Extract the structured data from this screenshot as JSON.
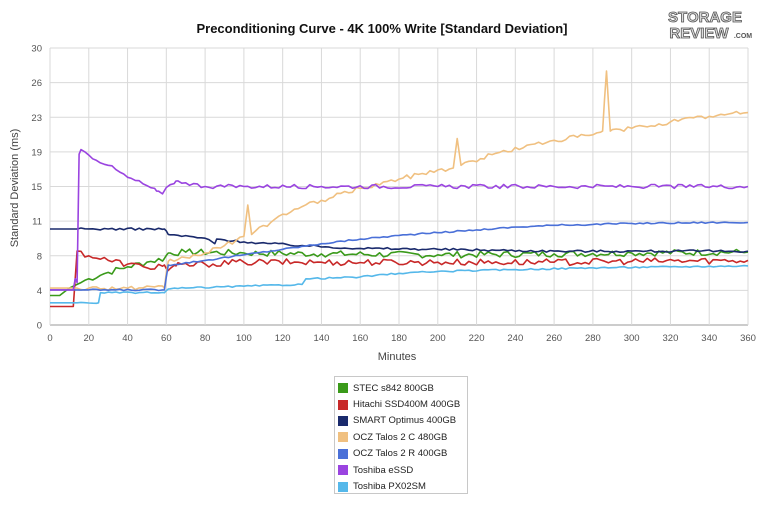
{
  "branding": {
    "logo_line1": "STORAGE",
    "logo_line2": "REVIEW",
    "logo_suffix": ".COM"
  },
  "chart_data": {
    "type": "line",
    "title": "Preconditioning Curve - 4K 100% Write [Standard Deviation]",
    "xlabel": "Minutes",
    "ylabel": "Standard Deviation (ms)",
    "xlim": [
      0,
      360
    ],
    "ylim": [
      0,
      30
    ],
    "xticks": [
      "0",
      "20",
      "40",
      "60",
      "80",
      "100",
      "120",
      "140",
      "160",
      "180",
      "200",
      "220",
      "240",
      "260",
      "280",
      "300",
      "320",
      "340",
      "360"
    ],
    "yticks": [
      "0",
      "4",
      "8",
      "11",
      "15",
      "19",
      "23",
      "26",
      "30"
    ],
    "grid": true,
    "legend_position": "bottom",
    "series": [
      {
        "name": "STEC s842 800GB",
        "color": "#3a9a1a",
        "points": [
          [
            0,
            3.2
          ],
          [
            5,
            3.2
          ],
          [
            10,
            4
          ],
          [
            20,
            5
          ],
          [
            30,
            5.7
          ],
          [
            40,
            6.3
          ],
          [
            50,
            6.8
          ],
          [
            59,
            7.2
          ],
          [
            61,
            7.8
          ],
          [
            70,
            7.9
          ],
          [
            100,
            7.8
          ],
          [
            140,
            7.7
          ],
          [
            200,
            7.6
          ],
          [
            260,
            7.7
          ],
          [
            300,
            7.8
          ],
          [
            360,
            7.9
          ]
        ],
        "jitter": 0.35
      },
      {
        "name": "Hitachi SSD400M 400GB",
        "color": "#c82828",
        "points": [
          [
            0,
            2
          ],
          [
            12,
            2
          ],
          [
            14,
            8
          ],
          [
            20,
            7.5
          ],
          [
            30,
            7
          ],
          [
            40,
            6.6
          ],
          [
            50,
            6.2
          ],
          [
            59,
            6.5
          ],
          [
            61,
            5.9
          ],
          [
            65,
            6.4
          ],
          [
            80,
            6.6
          ],
          [
            100,
            6.8
          ],
          [
            140,
            6.8
          ],
          [
            200,
            6.8
          ],
          [
            260,
            6.8
          ],
          [
            300,
            6.9
          ],
          [
            360,
            7
          ]
        ],
        "jitter": 0.35
      },
      {
        "name": "SMART Optimus 400GB",
        "color": "#1a2a6c",
        "points": [
          [
            0,
            10.4
          ],
          [
            30,
            10.4
          ],
          [
            59,
            10.4
          ],
          [
            61,
            9.8
          ],
          [
            80,
            9.4
          ],
          [
            85,
            8.8
          ],
          [
            86,
            9.3
          ],
          [
            100,
            9
          ],
          [
            130,
            8.6
          ],
          [
            160,
            8.3
          ],
          [
            200,
            8.2
          ],
          [
            260,
            8
          ],
          [
            300,
            8
          ],
          [
            360,
            8
          ]
        ],
        "jitter": 0.12
      },
      {
        "name": "OCZ Talos 2 C 480GB",
        "color": "#f0c080",
        "points": [
          [
            0,
            4
          ],
          [
            20,
            4
          ],
          [
            40,
            4
          ],
          [
            59,
            4
          ],
          [
            61,
            6.9
          ],
          [
            70,
            7.3
          ],
          [
            80,
            7.8
          ],
          [
            90,
            8.6
          ],
          [
            100,
            9.6
          ],
          [
            102,
            13
          ],
          [
            104,
            9.8
          ],
          [
            120,
            12
          ],
          [
            140,
            13.5
          ],
          [
            160,
            14.8
          ],
          [
            180,
            15.8
          ],
          [
            200,
            16.8
          ],
          [
            208,
            17
          ],
          [
            210,
            20.2
          ],
          [
            212,
            17.3
          ],
          [
            230,
            18.6
          ],
          [
            260,
            20
          ],
          [
            280,
            20.6
          ],
          [
            285,
            21
          ],
          [
            287,
            27.5
          ],
          [
            289,
            21
          ],
          [
            300,
            21.3
          ],
          [
            320,
            22
          ],
          [
            340,
            22.6
          ],
          [
            360,
            23
          ]
        ],
        "jitter": 0.25
      },
      {
        "name": "OCZ Talos 2 R 400GB",
        "color": "#4a70d8",
        "points": [
          [
            0,
            3.8
          ],
          [
            20,
            3.8
          ],
          [
            59,
            3.8
          ],
          [
            61,
            6.5
          ],
          [
            80,
            7
          ],
          [
            100,
            7.6
          ],
          [
            120,
            8.2
          ],
          [
            140,
            8.8
          ],
          [
            160,
            9.3
          ],
          [
            180,
            9.7
          ],
          [
            200,
            10
          ],
          [
            220,
            10.3
          ],
          [
            240,
            10.6
          ],
          [
            260,
            10.8
          ],
          [
            300,
            11
          ],
          [
            340,
            11.1
          ],
          [
            360,
            11.1
          ]
        ],
        "jitter": 0.08
      },
      {
        "name": "Toshiba eSSD",
        "color": "#9a44e0",
        "points": [
          [
            0,
            3.8
          ],
          [
            12,
            3.8
          ],
          [
            13,
            5
          ],
          [
            14,
            4.6
          ],
          [
            15,
            18.5
          ],
          [
            16,
            19
          ],
          [
            20,
            18.4
          ],
          [
            30,
            17.3
          ],
          [
            40,
            16
          ],
          [
            50,
            15.1
          ],
          [
            55,
            14.5
          ],
          [
            58,
            14.2
          ],
          [
            62,
            15.2
          ],
          [
            65,
            15.6
          ],
          [
            70,
            15.4
          ],
          [
            80,
            15
          ],
          [
            100,
            15
          ],
          [
            140,
            15
          ],
          [
            200,
            15
          ],
          [
            260,
            15
          ],
          [
            300,
            15
          ],
          [
            360,
            15
          ]
        ],
        "jitter": 0.22
      },
      {
        "name": "Toshiba PX02SM",
        "color": "#55b8ea",
        "points": [
          [
            0,
            2.4
          ],
          [
            25,
            2.4
          ],
          [
            26,
            3.5
          ],
          [
            59,
            3.5
          ],
          [
            61,
            3.9
          ],
          [
            70,
            4
          ],
          [
            100,
            4.2
          ],
          [
            130,
            4.4
          ],
          [
            132,
            5
          ],
          [
            160,
            5.2
          ],
          [
            180,
            5.6
          ],
          [
            200,
            5.8
          ],
          [
            240,
            6
          ],
          [
            280,
            6.2
          ],
          [
            320,
            6.3
          ],
          [
            360,
            6.4
          ]
        ],
        "jitter": 0.08
      }
    ]
  }
}
